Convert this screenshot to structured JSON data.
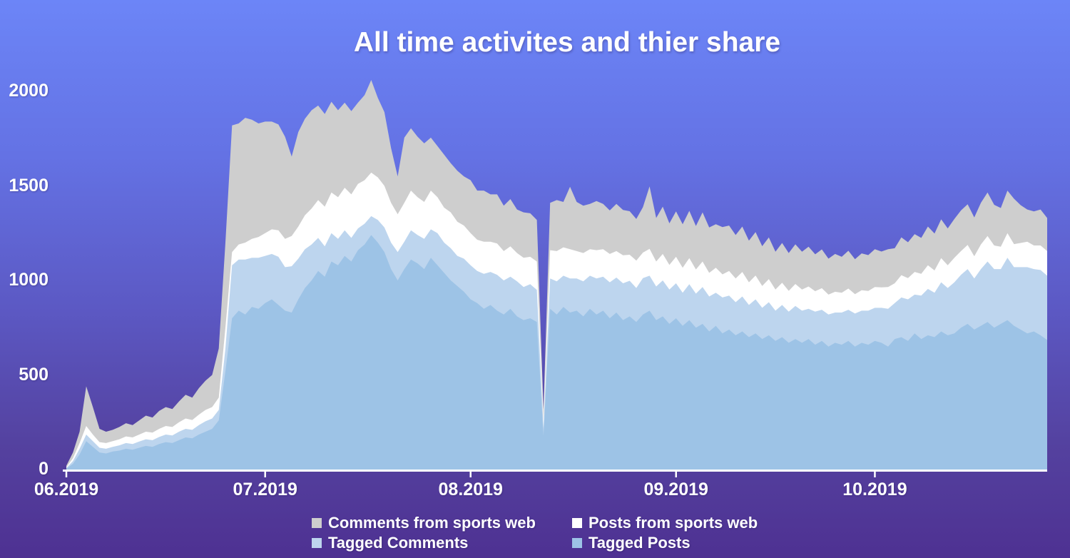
{
  "chart": {
    "title": "All time activites and thier share",
    "chart_data": {
      "type": "area",
      "stacked": true,
      "title": "All time activites and thier share",
      "xlabel": "",
      "ylabel": "",
      "x_unit": "days since 01.06.2019",
      "x_domain": [
        0,
        148
      ],
      "ylim": [
        0,
        2100
      ],
      "grid": false,
      "y_ticks": [
        {
          "value": 0,
          "label": "0"
        },
        {
          "value": 500,
          "label": "500"
        },
        {
          "value": 1000,
          "label": "1000"
        },
        {
          "value": 1500,
          "label": "1500"
        },
        {
          "value": 2000,
          "label": "2000"
        }
      ],
      "x_ticks": [
        {
          "day": 0,
          "label": "06.2019"
        },
        {
          "day": 30,
          "label": "07.2019"
        },
        {
          "day": 61,
          "label": "08.2019"
        },
        {
          "day": 92,
          "label": "09.2019"
        },
        {
          "day": 122,
          "label": "10.2019"
        }
      ],
      "series": [
        {
          "name": "Tagged Posts",
          "color": "#9dc3e6",
          "values": [
            5,
            30,
            80,
            150,
            120,
            90,
            85,
            95,
            100,
            110,
            105,
            115,
            125,
            120,
            135,
            145,
            140,
            155,
            170,
            165,
            185,
            200,
            215,
            260,
            520,
            800,
            840,
            820,
            860,
            850,
            880,
            900,
            870,
            840,
            830,
            900,
            960,
            1000,
            1050,
            1020,
            1100,
            1080,
            1130,
            1100,
            1160,
            1190,
            1240,
            1200,
            1150,
            1060,
            1000,
            1060,
            1110,
            1090,
            1060,
            1120,
            1080,
            1040,
            1000,
            970,
            940,
            900,
            880,
            850,
            870,
            840,
            820,
            850,
            810,
            790,
            800,
            780,
            180,
            850,
            820,
            860,
            830,
            840,
            810,
            850,
            820,
            840,
            800,
            830,
            790,
            810,
            780,
            820,
            840,
            790,
            810,
            770,
            800,
            760,
            790,
            750,
            770,
            730,
            760,
            720,
            740,
            710,
            730,
            700,
            720,
            690,
            710,
            680,
            700,
            670,
            690,
            670,
            690,
            660,
            680,
            650,
            670,
            660,
            680,
            650,
            670,
            660,
            680,
            670,
            650,
            690,
            700,
            680,
            720,
            690,
            710,
            700,
            730,
            710,
            720,
            750,
            770,
            740,
            760,
            780,
            750,
            770,
            790,
            760,
            740,
            720,
            730,
            710,
            685
          ]
        },
        {
          "name": "Tagged Comments",
          "color": "#bdd5ee",
          "values": [
            3,
            15,
            30,
            35,
            30,
            25,
            25,
            25,
            28,
            30,
            30,
            33,
            35,
            35,
            37,
            40,
            40,
            45,
            45,
            45,
            50,
            55,
            55,
            55,
            120,
            280,
            270,
            290,
            260,
            270,
            250,
            240,
            255,
            230,
            245,
            215,
            205,
            190,
            175,
            160,
            150,
            140,
            135,
            125,
            115,
            110,
            100,
            120,
            130,
            140,
            150,
            145,
            155,
            150,
            160,
            150,
            170,
            160,
            170,
            160,
            175,
            180,
            170,
            185,
            175,
            190,
            180,
            170,
            185,
            175,
            180,
            170,
            40,
            160,
            175,
            165,
            180,
            170,
            185,
            175,
            190,
            180,
            190,
            185,
            195,
            188,
            180,
            192,
            185,
            178,
            190,
            182,
            185,
            175,
            190,
            180,
            195,
            185,
            175,
            190,
            180,
            175,
            185,
            170,
            180,
            165,
            175,
            160,
            170,
            165,
            175,
            170,
            160,
            175,
            165,
            170,
            160,
            170,
            165,
            175,
            170,
            180,
            175,
            185,
            200,
            190,
            210,
            220,
            205,
            230,
            245,
            235,
            260,
            250,
            270,
            280,
            290,
            270,
            300,
            320,
            310,
            290,
            330,
            310,
            330,
            350,
            330,
            345,
            340
          ]
        },
        {
          "name": "Posts from sports web",
          "color": "#ffffff",
          "values": [
            4,
            15,
            30,
            45,
            35,
            30,
            30,
            30,
            32,
            35,
            35,
            37,
            40,
            40,
            43,
            45,
            45,
            50,
            55,
            52,
            55,
            60,
            60,
            65,
            110,
            70,
            80,
            90,
            100,
            110,
            120,
            130,
            140,
            150,
            160,
            170,
            180,
            190,
            200,
            210,
            215,
            220,
            225,
            230,
            235,
            230,
            230,
            225,
            220,
            210,
            200,
            205,
            210,
            200,
            195,
            205,
            190,
            185,
            190,
            180,
            175,
            170,
            165,
            170,
            160,
            165,
            155,
            160,
            150,
            155,
            145,
            150,
            40,
            150,
            160,
            150,
            155,
            145,
            150,
            140,
            150,
            145,
            150,
            140,
            148,
            138,
            145,
            135,
            142,
            132,
            140,
            130,
            140,
            132,
            138,
            128,
            135,
            125,
            132,
            122,
            130,
            125,
            130,
            120,
            126,
            116,
            122,
            112,
            118,
            110,
            116,
            112,
            118,
            108,
            114,
            105,
            110,
            105,
            112,
            102,
            108,
            104,
            110,
            108,
            115,
            105,
            118,
            112,
            120,
            115,
            125,
            118,
            128,
            120,
            130,
            125,
            128,
            118,
            130,
            135,
            125,
            118,
            130,
            122,
            128,
            135,
            125,
            130,
            130
          ]
        },
        {
          "name": "Comments from sports web",
          "color": "#cecece",
          "values": [
            8,
            30,
            60,
            210,
            145,
            70,
            60,
            60,
            65,
            70,
            65,
            75,
            85,
            80,
            95,
            100,
            95,
            110,
            125,
            118,
            140,
            155,
            170,
            260,
            450,
            670,
            640,
            660,
            630,
            600,
            590,
            570,
            560,
            540,
            420,
            500,
            510,
            520,
            500,
            490,
            480,
            460,
            450,
            440,
            430,
            450,
            490,
            420,
            390,
            290,
            200,
            345,
            330,
            320,
            310,
            280,
            270,
            280,
            260,
            270,
            260,
            280,
            260,
            270,
            250,
            260,
            240,
            250,
            230,
            240,
            230,
            220,
            60,
            250,
            270,
            240,
            330,
            260,
            250,
            240,
            260,
            240,
            230,
            250,
            240,
            230,
            220,
            240,
            330,
            230,
            250,
            220,
            240,
            230,
            250,
            230,
            260,
            240,
            230,
            250,
            240,
            230,
            240,
            220,
            230,
            210,
            220,
            200,
            210,
            200,
            210,
            200,
            210,
            195,
            205,
            190,
            200,
            190,
            200,
            185,
            195,
            190,
            200,
            190,
            200,
            185,
            200,
            190,
            200,
            190,
            205,
            195,
            205,
            195,
            205,
            215,
            215,
            205,
            220,
            230,
            215,
            205,
            225,
            240,
            200,
            170,
            180,
            190,
            175
          ]
        }
      ],
      "legend": {
        "position": "bottom",
        "items": [
          {
            "label": "Comments from sports web",
            "color": "#cecece",
            "col": 0,
            "row": 0
          },
          {
            "label": "Posts from sports web",
            "color": "#ffffff",
            "col": 1,
            "row": 0
          },
          {
            "label": "Tagged Comments",
            "color": "#bdd5ee",
            "col": 0,
            "row": 1
          },
          {
            "label": "Tagged Posts",
            "color": "#9dc3e6",
            "col": 1,
            "row": 1
          }
        ]
      },
      "axis_color": "#ffffff"
    }
  }
}
